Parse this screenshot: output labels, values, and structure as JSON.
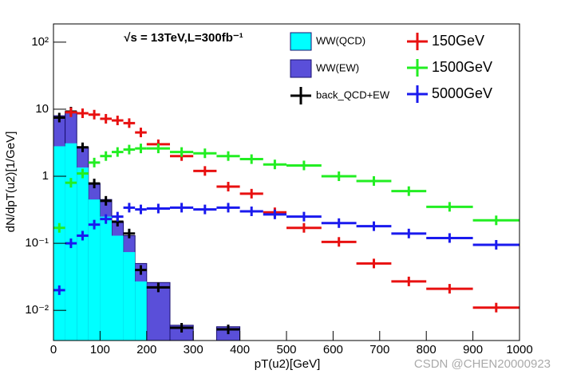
{
  "chart_data": {
    "type": "histogram",
    "title": "√s = 13TeV,L=300fb⁻¹",
    "x_label": "pT(u2)[GeV]",
    "y_label": "dN/dpT(u2)[1/GeV]",
    "log_y": true,
    "bins": [
      0,
      25,
      50,
      75,
      100,
      125,
      150,
      175,
      200,
      250,
      300,
      350,
      400,
      450,
      500,
      575,
      650,
      725,
      800,
      900,
      1000
    ],
    "xlim": [
      0,
      1000
    ],
    "xticks": [
      0,
      100,
      200,
      300,
      400,
      500,
      600,
      700,
      800,
      900,
      1000
    ],
    "ylim": [
      0.00355,
      187
    ],
    "yticks": [
      {
        "value": 0.01,
        "label": "10⁻²"
      },
      {
        "value": 0.1,
        "label": "10⁻¹"
      },
      1,
      10,
      {
        "value": 100,
        "label": "10²"
      }
    ],
    "series": [
      {
        "name": "WW(EW)",
        "color": "#5a4fd9",
        "style": "fill",
        "values": [
          8.0,
          9.2,
          2.7,
          0.78,
          0.45,
          0.21,
          0.13,
          0.05,
          0.026,
          0.006,
          null,
          0.0057,
          null,
          null,
          null,
          null,
          null,
          null,
          null,
          null
        ]
      },
      {
        "name": "WW(QCD)",
        "color": "#00ffff",
        "style": "fill",
        "values": [
          2.8,
          3.1,
          1.35,
          0.45,
          0.25,
          0.13,
          0.074,
          0.027,
          null,
          null,
          null,
          null,
          null,
          null,
          null,
          null,
          null,
          null,
          null,
          null
        ]
      },
      {
        "name": "back_QCD+EW",
        "color": "#000000",
        "style": "cross",
        "values": [
          7.5,
          9.2,
          2.7,
          0.78,
          0.43,
          0.21,
          0.14,
          0.04,
          0.022,
          0.0055,
          null,
          0.0052,
          null,
          null,
          null,
          null,
          null,
          null,
          null,
          null
        ]
      },
      {
        "name": "150GeV",
        "color": "#e81010",
        "style": "cross",
        "values": [
          null,
          9.0,
          8.7,
          8.3,
          7.2,
          6.8,
          6.2,
          4.5,
          3.0,
          2.0,
          1.2,
          0.7,
          0.55,
          0.29,
          0.17,
          0.105,
          0.05,
          0.027,
          0.021,
          0.011
        ]
      },
      {
        "name": "1500GeV",
        "color": "#22ee22",
        "style": "cross",
        "values": [
          0.17,
          0.8,
          1.1,
          1.6,
          2.0,
          2.3,
          2.5,
          2.6,
          2.6,
          2.3,
          2.2,
          2.0,
          1.8,
          1.5,
          1.45,
          1.0,
          0.85,
          0.6,
          0.35,
          0.22
        ]
      },
      {
        "name": "5000GeV",
        "color": "#1a1aee",
        "style": "cross",
        "values": [
          0.02,
          0.1,
          0.13,
          0.19,
          0.23,
          0.25,
          0.34,
          0.32,
          0.33,
          0.34,
          0.32,
          0.34,
          0.3,
          0.27,
          0.25,
          0.2,
          0.18,
          0.14,
          0.12,
          0.095
        ]
      }
    ]
  },
  "watermark": "CSDN @CHEN20000923"
}
